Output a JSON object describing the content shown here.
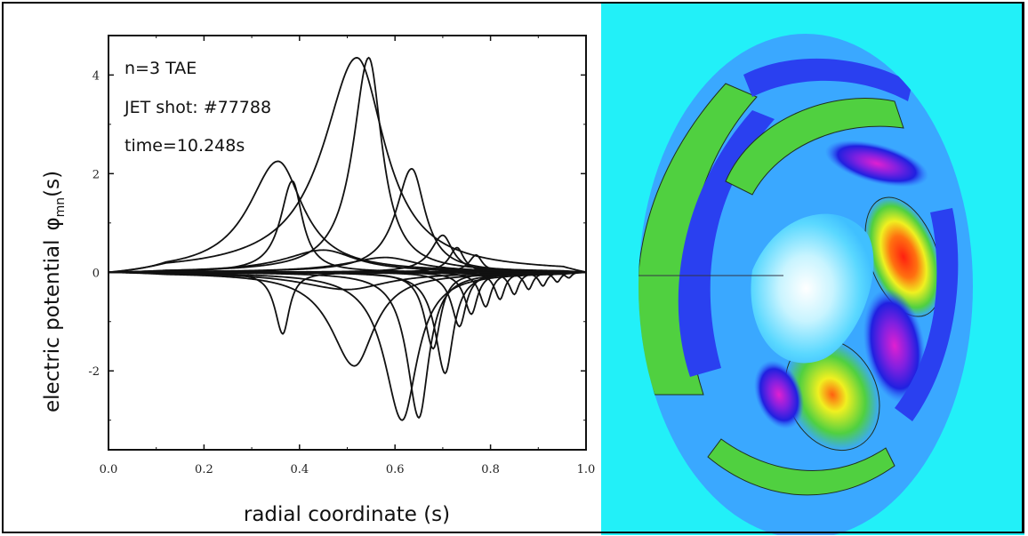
{
  "chart_data": {
    "type": "line",
    "xlabel": "radial coordinate (s)",
    "ylabel_main": "electric potential",
    "ylabel_symbol": "φ",
    "ylabel_sub": "mn",
    "ylabel_suffix": "(s)",
    "xlim": [
      0.0,
      1.0
    ],
    "ylim": [
      -3.6,
      4.8
    ],
    "x_ticks": [
      "0.0",
      "0.2",
      "0.4",
      "0.6",
      "0.8",
      "1.0"
    ],
    "x_tick_values": [
      0.0,
      0.2,
      0.4,
      0.6,
      0.8,
      1.0
    ],
    "y_ticks": [
      "4",
      "2",
      "0",
      "-2"
    ],
    "y_tick_values": [
      4,
      2,
      0,
      -2
    ],
    "annotations": [
      "n=3 TAE",
      "JET shot: #77788",
      "time=10.248s"
    ],
    "grid": false,
    "series": [
      {
        "peak_x": 0.52,
        "amplitude": 4.35,
        "width": 0.085,
        "shoulder": 0.35
      },
      {
        "peak_x": 0.545,
        "amplitude": 4.35,
        "width": 0.04,
        "shoulder": 0.2
      },
      {
        "peak_x": 0.355,
        "amplitude": 2.25,
        "width": 0.075,
        "shoulder": 0.1
      },
      {
        "peak_x": 0.385,
        "amplitude": 1.85,
        "width": 0.03,
        "shoulder": 0.1
      },
      {
        "peak_x": 0.635,
        "amplitude": 2.1,
        "width": 0.04,
        "shoulder": 0.2
      },
      {
        "peak_x": 0.365,
        "amplitude": -1.25,
        "width": 0.02,
        "shoulder": 0.1
      },
      {
        "peak_x": 0.515,
        "amplitude": -1.9,
        "width": 0.06,
        "shoulder": 0.2
      },
      {
        "peak_x": 0.615,
        "amplitude": -3.0,
        "width": 0.045,
        "shoulder": 0.2
      },
      {
        "peak_x": 0.65,
        "amplitude": -2.95,
        "width": 0.03,
        "shoulder": 0.2
      },
      {
        "peak_x": 0.705,
        "amplitude": -2.05,
        "width": 0.025,
        "shoulder": 0.2
      },
      {
        "peak_x": 0.68,
        "amplitude": -1.55,
        "width": 0.022,
        "shoulder": 0.2
      },
      {
        "peak_x": 0.735,
        "amplitude": -1.1,
        "width": 0.02,
        "shoulder": 0.2
      },
      {
        "peak_x": 0.76,
        "amplitude": -0.85,
        "width": 0.018,
        "shoulder": 0.2
      },
      {
        "peak_x": 0.79,
        "amplitude": -0.7,
        "width": 0.016,
        "shoulder": 0.2
      },
      {
        "peak_x": 0.82,
        "amplitude": -0.55,
        "width": 0.014,
        "shoulder": 0.2
      },
      {
        "peak_x": 0.85,
        "amplitude": -0.45,
        "width": 0.013,
        "shoulder": 0.2
      },
      {
        "peak_x": 0.88,
        "amplitude": -0.35,
        "width": 0.012,
        "shoulder": 0.2
      },
      {
        "peak_x": 0.91,
        "amplitude": -0.28,
        "width": 0.011,
        "shoulder": 0.2
      },
      {
        "peak_x": 0.94,
        "amplitude": -0.2,
        "width": 0.01,
        "shoulder": 0.2
      },
      {
        "peak_x": 0.965,
        "amplitude": -0.15,
        "width": 0.009,
        "shoulder": 0.2
      },
      {
        "peak_x": 0.7,
        "amplitude": 0.75,
        "width": 0.03,
        "shoulder": 0.2
      },
      {
        "peak_x": 0.73,
        "amplitude": 0.5,
        "width": 0.02,
        "shoulder": 0.2
      },
      {
        "peak_x": 0.77,
        "amplitude": 0.35,
        "width": 0.018,
        "shoulder": 0.2
      },
      {
        "peak_x": 0.45,
        "amplitude": 0.45,
        "width": 0.1,
        "shoulder": 0.2
      },
      {
        "peak_x": 0.5,
        "amplitude": -0.35,
        "width": 0.12,
        "shoulder": 0.2
      },
      {
        "peak_x": 0.58,
        "amplitude": 0.3,
        "width": 0.1,
        "shoulder": 0.2
      }
    ]
  },
  "contour_image": {
    "colors": {
      "background": "#22f0f8",
      "low_blue": "#2020e0",
      "mid_blue": "#3070ff",
      "green": "#40d040",
      "yellow": "#f0f020",
      "red": "#ff3020",
      "magenta": "#c020c0"
    }
  }
}
